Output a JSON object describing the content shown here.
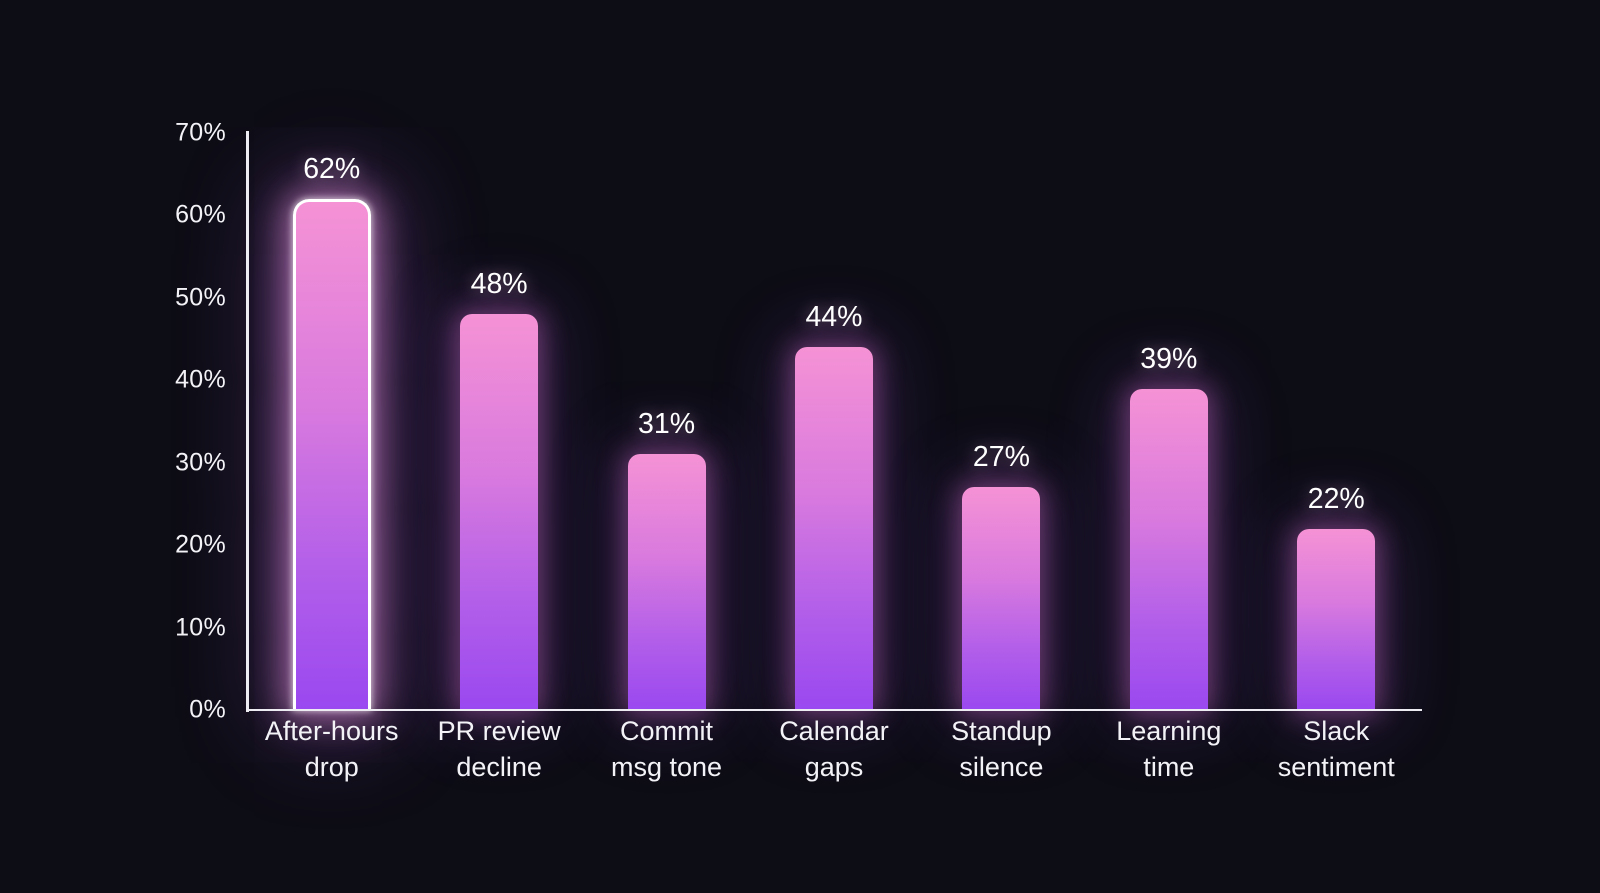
{
  "chart_data": {
    "type": "bar",
    "title": "",
    "xlabel": "",
    "ylabel": "",
    "categories": [
      "After-hours\ndrop",
      "PR review\ndecline",
      "Commit\nmsg tone",
      "Calendar\ngaps",
      "Standup\nsilence",
      "Learning\ntime",
      "Slack\nsentiment"
    ],
    "values": [
      62,
      48,
      31,
      44,
      27,
      39,
      22
    ],
    "value_labels": [
      "62%",
      "48%",
      "31%",
      "44%",
      "27%",
      "39%",
      "22%"
    ],
    "yticks": [
      {
        "value": 70,
        "label": "70%"
      },
      {
        "value": 60,
        "label": "60%"
      },
      {
        "value": 50,
        "label": "50%"
      },
      {
        "value": 40,
        "label": "40%"
      },
      {
        "value": 30,
        "label": "30%"
      },
      {
        "value": 20,
        "label": "20%"
      },
      {
        "value": 10,
        "label": "10%"
      },
      {
        "value": 0,
        "label": "0%"
      }
    ],
    "ylim": [
      0,
      70
    ],
    "grid": false,
    "legend": false,
    "highlighted_index": 0,
    "colors": {
      "background": "#0d0d15",
      "axis": "#ececf2",
      "text": "#f3f3f7",
      "bar_gradient_top": "#f592d5",
      "bar_gradient_bottom": "#9a48f0",
      "highlight_border": "#ffffff",
      "glow_pink": "#e87ad8",
      "glow_purple": "#9848e8"
    }
  }
}
